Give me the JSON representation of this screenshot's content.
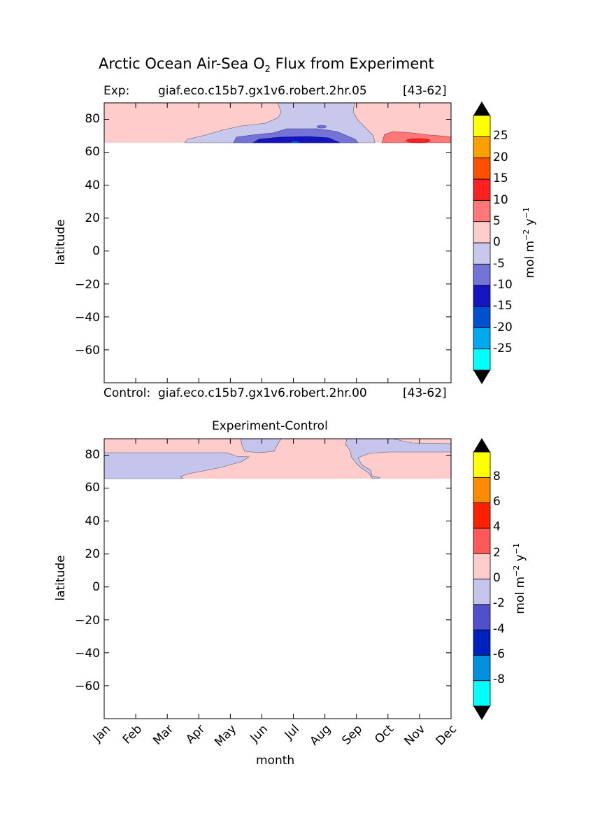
{
  "figure": {
    "title_prefix": "Arctic Ocean Air-Sea O",
    "title_sub": "2",
    "title_suffix": " Flux from Experiment"
  },
  "panel_top": {
    "exp_label": "Exp:",
    "exp_name": "giaf.eco.c15b7.gx1v6.robert.2hr.05",
    "exp_years": "[43-62]",
    "control_label": "Control:",
    "control_name": "giaf.eco.c15b7.gx1v6.robert.2hr.00",
    "control_years": "[43-62]",
    "ylabel": "latitude",
    "colorbar_label": "mol m",
    "colorbar_sup1": "−2",
    "colorbar_y": " y",
    "colorbar_sup2": "−1"
  },
  "panel_bottom": {
    "title": "Experiment-Control",
    "ylabel": "latitude",
    "xlabel": "month",
    "colorbar_label": "mol m",
    "colorbar_sup1": "−2",
    "colorbar_y": " y",
    "colorbar_sup2": "−1"
  },
  "chart_data": [
    {
      "type": "heatmap",
      "title": "Exp: giaf.eco.c15b7.gx1v6.robert.2hr.05 [43-62]",
      "xlabel": "",
      "ylabel": "latitude",
      "x": [
        "Jan",
        "Feb",
        "Mar",
        "Apr",
        "May",
        "Jun",
        "Jul",
        "Aug",
        "Sep",
        "Oct",
        "Nov",
        "Dec"
      ],
      "ylim": [
        -80,
        90
      ],
      "y_ticks": [
        "80",
        "60",
        "40",
        "20",
        "0",
        "−20",
        "−40",
        "−60"
      ],
      "data_extent_lat": [
        66,
        90
      ],
      "colorbar_levels": [
        -30,
        -25,
        -20,
        -15,
        -10,
        -5,
        0,
        5,
        10,
        15,
        20,
        25,
        30
      ],
      "colorbar_tick_labels": [
        "25",
        "20",
        "15",
        "10",
        "5",
        "0",
        "-5",
        "-10",
        "-15",
        "-20",
        "-25"
      ],
      "colorbar_colors": [
        "#00ffff",
        "#00aaee",
        "#0050d0",
        "#1414c0",
        "#7474d8",
        "#c8c8ec",
        "#ffcccc",
        "#ff7878",
        "#ff2020",
        "#ff5000",
        "#ffa000",
        "#ffff00"
      ],
      "extend": "both",
      "regions": [
        {
          "level": "0 to 5",
          "color": "#ffcccc",
          "months": "Jan–May and Sep–Dec",
          "lat": "66–90"
        },
        {
          "level": "-5 to 0",
          "color": "#c8c8ec",
          "months": "Apr–Sep",
          "lat": "66–90"
        },
        {
          "level": "-10 to -5",
          "color": "#7474d8",
          "months": "May–Sep",
          "lat": "66–72"
        },
        {
          "level": "-15 to -10",
          "color": "#1414c0",
          "months": "Jun–Aug",
          "lat": "66–68"
        },
        {
          "level": "5 to 10",
          "color": "#ff7878",
          "months": "Sep–Dec",
          "lat": "66–72"
        },
        {
          "level": "10 to 15",
          "color": "#ff2020",
          "months": "Nov",
          "lat": "66–67"
        }
      ]
    },
    {
      "type": "heatmap",
      "title": "Experiment-Control",
      "xlabel": "month",
      "ylabel": "latitude",
      "x": [
        "Jan",
        "Feb",
        "Mar",
        "Apr",
        "May",
        "Jun",
        "Jul",
        "Aug",
        "Sep",
        "Oct",
        "Nov",
        "Dec"
      ],
      "ylim": [
        -80,
        90
      ],
      "y_ticks": [
        "80",
        "60",
        "40",
        "20",
        "0",
        "−20",
        "−40",
        "−60"
      ],
      "data_extent_lat": [
        66,
        90
      ],
      "colorbar_levels": [
        -10,
        -8,
        -6,
        -4,
        -2,
        0,
        2,
        4,
        6,
        8,
        10
      ],
      "colorbar_tick_labels": [
        "8",
        "6",
        "4",
        "2",
        "0",
        "-2",
        "-4",
        "-6",
        "-8"
      ],
      "colorbar_colors": [
        "#00ffff",
        "#0090e0",
        "#0020c0",
        "#5050cc",
        "#c4c4ec",
        "#ffcccc",
        "#ff5858",
        "#ff2000",
        "#ff8c00",
        "#ffff00"
      ],
      "extend": "both",
      "regions": [
        {
          "level": "0 to 2",
          "color": "#ffcccc",
          "months": "Jan–Dec north of 82, Apr–Sep south",
          "lat": "66–90"
        },
        {
          "level": "-2 to 0",
          "color": "#c4c4ec",
          "months": "Jan–May and Sep–Dec",
          "lat": "66–82"
        }
      ]
    }
  ]
}
